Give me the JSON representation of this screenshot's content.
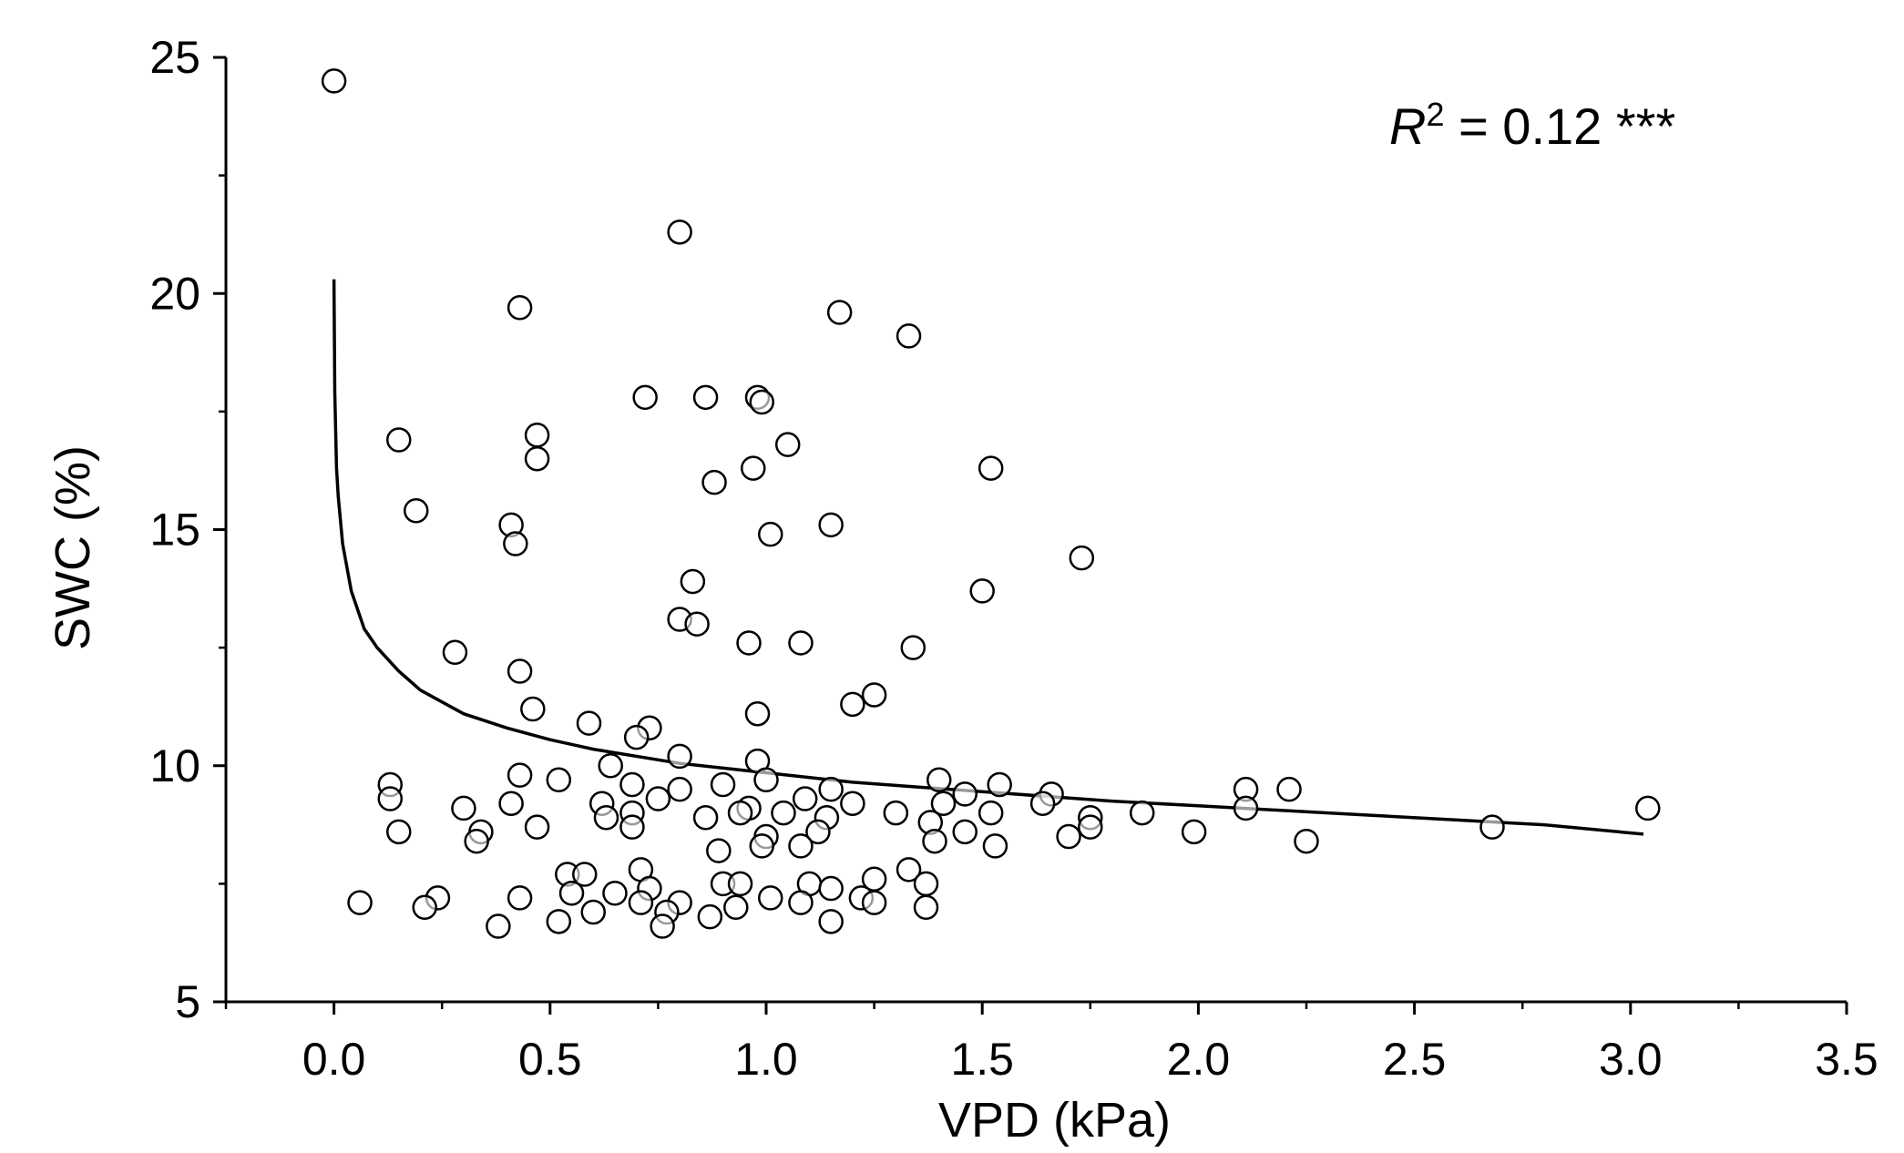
{
  "chart_data": {
    "type": "scatter",
    "title": "",
    "xlabel": "VPD (kPa)",
    "ylabel": "SWC (%)",
    "xlim": [
      -0.25,
      3.5
    ],
    "ylim": [
      5,
      25
    ],
    "xticks": [
      0.0,
      0.5,
      1.0,
      1.5,
      2.0,
      2.5,
      3.0,
      3.5
    ],
    "xtick_labels": [
      "0.0",
      "0.5",
      "1.0",
      "1.5",
      "2.0",
      "2.5",
      "3.0",
      "3.5"
    ],
    "yticks": [
      5,
      10,
      15,
      20,
      25
    ],
    "ytick_labels": [
      "5",
      "10",
      "15",
      "20",
      "25"
    ],
    "grid": false,
    "annotation": {
      "r_symbol": "R",
      "r_exponent": "2",
      "r_value": " = 0.12 ***"
    },
    "fit": {
      "type": "line",
      "description": "decreasing power-law fit",
      "points": [
        [
          0.0,
          20.3
        ],
        [
          0.002,
          17.9
        ],
        [
          0.006,
          16.3
        ],
        [
          0.01,
          15.7
        ],
        [
          0.02,
          14.7
        ],
        [
          0.04,
          13.7
        ],
        [
          0.07,
          12.9
        ],
        [
          0.1,
          12.5
        ],
        [
          0.15,
          12.0
        ],
        [
          0.2,
          11.6
        ],
        [
          0.3,
          11.1
        ],
        [
          0.4,
          10.8
        ],
        [
          0.5,
          10.55
        ],
        [
          0.6,
          10.35
        ],
        [
          0.8,
          10.05
        ],
        [
          1.0,
          9.85
        ],
        [
          1.2,
          9.65
        ],
        [
          1.5,
          9.45
        ],
        [
          1.8,
          9.25
        ],
        [
          2.0,
          9.15
        ],
        [
          2.3,
          9.0
        ],
        [
          2.6,
          8.85
        ],
        [
          2.8,
          8.75
        ],
        [
          3.03,
          8.55
        ]
      ]
    },
    "points": [
      [
        0.0,
        24.5
      ],
      [
        0.8,
        21.3
      ],
      [
        0.43,
        19.7
      ],
      [
        1.17,
        19.6
      ],
      [
        1.33,
        19.1
      ],
      [
        0.72,
        17.8
      ],
      [
        0.86,
        17.8
      ],
      [
        0.98,
        17.8
      ],
      [
        0.99,
        17.7
      ],
      [
        0.47,
        17.0
      ],
      [
        0.15,
        16.9
      ],
      [
        1.05,
        16.8
      ],
      [
        0.47,
        16.5
      ],
      [
        1.52,
        16.3
      ],
      [
        0.97,
        16.3
      ],
      [
        0.88,
        16.0
      ],
      [
        0.19,
        15.4
      ],
      [
        1.15,
        15.1
      ],
      [
        0.41,
        15.1
      ],
      [
        0.42,
        14.7
      ],
      [
        1.01,
        14.9
      ],
      [
        1.73,
        14.4
      ],
      [
        0.83,
        13.9
      ],
      [
        1.5,
        13.7
      ],
      [
        0.8,
        13.1
      ],
      [
        0.84,
        13.0
      ],
      [
        0.96,
        12.6
      ],
      [
        1.08,
        12.6
      ],
      [
        1.34,
        12.5
      ],
      [
        0.28,
        12.4
      ],
      [
        0.43,
        12.0
      ],
      [
        1.25,
        11.5
      ],
      [
        1.2,
        11.3
      ],
      [
        0.46,
        11.2
      ],
      [
        0.98,
        11.1
      ],
      [
        0.59,
        10.9
      ],
      [
        0.73,
        10.8
      ],
      [
        0.7,
        10.6
      ],
      [
        0.8,
        10.2
      ],
      [
        0.98,
        10.1
      ],
      [
        0.64,
        10.0
      ],
      [
        0.43,
        9.8
      ],
      [
        0.52,
        9.7
      ],
      [
        0.69,
        9.6
      ],
      [
        0.13,
        9.6
      ],
      [
        1.4,
        9.7
      ],
      [
        1.54,
        9.6
      ],
      [
        0.8,
        9.5
      ],
      [
        0.9,
        9.6
      ],
      [
        1.0,
        9.7
      ],
      [
        1.15,
        9.5
      ],
      [
        1.46,
        9.4
      ],
      [
        1.66,
        9.4
      ],
      [
        2.11,
        9.5
      ],
      [
        2.21,
        9.5
      ],
      [
        0.13,
        9.3
      ],
      [
        0.41,
        9.2
      ],
      [
        0.62,
        9.2
      ],
      [
        0.75,
        9.3
      ],
      [
        0.96,
        9.1
      ],
      [
        1.09,
        9.3
      ],
      [
        1.2,
        9.2
      ],
      [
        1.41,
        9.2
      ],
      [
        1.64,
        9.2
      ],
      [
        0.3,
        9.1
      ],
      [
        0.69,
        9.0
      ],
      [
        0.86,
        8.9
      ],
      [
        0.94,
        9.0
      ],
      [
        1.04,
        9.0
      ],
      [
        1.14,
        8.9
      ],
      [
        1.3,
        9.0
      ],
      [
        1.52,
        9.0
      ],
      [
        1.75,
        8.9
      ],
      [
        1.87,
        9.0
      ],
      [
        2.11,
        9.1
      ],
      [
        3.04,
        9.1
      ],
      [
        0.63,
        8.9
      ],
      [
        0.15,
        8.6
      ],
      [
        0.34,
        8.6
      ],
      [
        0.47,
        8.7
      ],
      [
        0.69,
        8.7
      ],
      [
        1.0,
        8.5
      ],
      [
        1.12,
        8.6
      ],
      [
        1.38,
        8.8
      ],
      [
        1.46,
        8.6
      ],
      [
        1.7,
        8.5
      ],
      [
        1.75,
        8.7
      ],
      [
        1.99,
        8.6
      ],
      [
        2.68,
        8.7
      ],
      [
        0.33,
        8.4
      ],
      [
        0.99,
        8.3
      ],
      [
        1.08,
        8.3
      ],
      [
        1.39,
        8.4
      ],
      [
        1.53,
        8.3
      ],
      [
        2.25,
        8.4
      ],
      [
        0.89,
        8.2
      ],
      [
        0.71,
        7.8
      ],
      [
        0.54,
        7.7
      ],
      [
        0.58,
        7.7
      ],
      [
        1.1,
        7.5
      ],
      [
        1.25,
        7.6
      ],
      [
        1.33,
        7.8
      ],
      [
        1.37,
        7.5
      ],
      [
        0.73,
        7.4
      ],
      [
        0.9,
        7.5
      ],
      [
        0.94,
        7.5
      ],
      [
        1.15,
        7.4
      ],
      [
        0.24,
        7.2
      ],
      [
        0.43,
        7.2
      ],
      [
        0.55,
        7.3
      ],
      [
        0.65,
        7.3
      ],
      [
        0.71,
        7.1
      ],
      [
        0.8,
        7.1
      ],
      [
        0.93,
        7.0
      ],
      [
        1.01,
        7.2
      ],
      [
        1.08,
        7.1
      ],
      [
        1.22,
        7.2
      ],
      [
        1.25,
        7.1
      ],
      [
        1.37,
        7.0
      ],
      [
        0.06,
        7.1
      ],
      [
        0.21,
        7.0
      ],
      [
        0.6,
        6.9
      ],
      [
        0.77,
        6.9
      ],
      [
        0.87,
        6.8
      ],
      [
        0.52,
        6.7
      ],
      [
        0.38,
        6.6
      ],
      [
        0.76,
        6.6
      ],
      [
        1.15,
        6.7
      ]
    ]
  }
}
